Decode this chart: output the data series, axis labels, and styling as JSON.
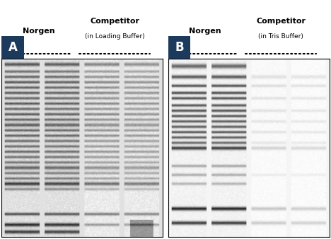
{
  "fig_width": 4.68,
  "fig_height": 3.38,
  "panel_A_label": "A",
  "panel_B_label": "B",
  "label_bg_color": "#1b3a5c",
  "label_text_color": "#ffffff",
  "norgen_label": "Norgen",
  "competitor_A_label": "Competitor",
  "competitor_A_sublabel": "(in Loading Buffer)",
  "competitor_B_label": "Competitor",
  "competitor_B_sublabel": "(in Tris Buffer)",
  "bg_color": "#ffffff"
}
